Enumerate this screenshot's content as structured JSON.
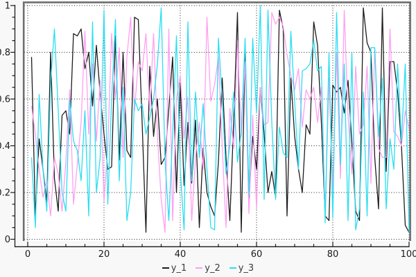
{
  "colors": {
    "background": "#f8f8f8",
    "plot_background": "#ffffff",
    "frame": "#6f6f6f",
    "grid": "#1c1c1c",
    "axis": "#1a1a1a",
    "tick_label": "#1a1a1a",
    "legend_text": "#3a3a3a"
  },
  "legend": {
    "items": [
      {
        "label": "y_1",
        "color": "#1c1c1c"
      },
      {
        "label": "y_2",
        "color": "#ff9ff2"
      },
      {
        "label": "y_3",
        "color": "#2adef2"
      }
    ]
  },
  "chart_data": {
    "type": "line",
    "title": "",
    "xlabel": "",
    "ylabel": "",
    "xlim": [
      0,
      100
    ],
    "ylim": [
      0,
      1
    ],
    "x_ticks": [
      0,
      20,
      40,
      60,
      80,
      100
    ],
    "x_tick_labels": [
      "0",
      "20",
      "40",
      "60",
      "80",
      "100"
    ],
    "y_ticks": [
      0,
      0.2,
      0.4,
      0.6,
      0.8,
      1
    ],
    "y_tick_labels": [
      "0",
      "0.2",
      "0.4",
      "0.6",
      "0.8",
      "1"
    ],
    "x_minor_step": 5,
    "y_minor_step": 0.05,
    "grid": "dotted",
    "legend_position": "bottom-center",
    "x": [
      1,
      2,
      3,
      4,
      5,
      6,
      7,
      8,
      9,
      10,
      11,
      12,
      13,
      14,
      15,
      16,
      17,
      18,
      19,
      20,
      21,
      22,
      23,
      24,
      25,
      26,
      27,
      28,
      29,
      30,
      31,
      32,
      33,
      34,
      35,
      36,
      37,
      38,
      39,
      40,
      41,
      42,
      43,
      44,
      45,
      46,
      47,
      48,
      49,
      50,
      51,
      52,
      53,
      54,
      55,
      56,
      57,
      58,
      59,
      60,
      61,
      62,
      63,
      64,
      65,
      66,
      67,
      68,
      69,
      70,
      71,
      72,
      73,
      74,
      75,
      76,
      77,
      78,
      79,
      80,
      81,
      82,
      83,
      84,
      85,
      86,
      87,
      88,
      89,
      90,
      91,
      92,
      93,
      94,
      95,
      96,
      97,
      98,
      99,
      100
    ],
    "series": [
      {
        "name": "y_1",
        "color": "#1c1c1c",
        "values": [
          0.78,
          0.1,
          0.43,
          0.3,
          0.16,
          0.8,
          0.26,
          0.12,
          0.53,
          0.55,
          0.45,
          0.88,
          0.87,
          0.9,
          0.73,
          0.8,
          0.57,
          0.83,
          0.62,
          0.45,
          0.3,
          0.31,
          0.87,
          0.34,
          0.8,
          0.38,
          0.35,
          0.95,
          0.94,
          0.5,
          0.03,
          0.74,
          0.44,
          0.6,
          0.32,
          0.35,
          0.56,
          0.78,
          0.2,
          0.67,
          0.23,
          0.5,
          0.24,
          0.51,
          0.05,
          0.39,
          0.2,
          0.14,
          0.1,
          0.33,
          0.69,
          0.35,
          0.08,
          0.5,
          0.97,
          0.03,
          0.81,
          0.17,
          0.44,
          0.3,
          0.65,
          0.45,
          0.2,
          0.29,
          0.18,
          0.98,
          0.9,
          0.1,
          0.69,
          0.44,
          0.3,
          0.2,
          0.49,
          0.45,
          0.93,
          0.83,
          0.5,
          0.1,
          0.08,
          0.66,
          0.63,
          0.65,
          0.54,
          0.68,
          0.41,
          0.12,
          0.08,
          0.99,
          0.84,
          0.8,
          0.35,
          0.13,
          0.99,
          0.29,
          0.76,
          0.76,
          0.63,
          0.4,
          0.06,
          0.03
        ]
      },
      {
        "name": "y_2",
        "color": "#ff9ff2",
        "values": [
          0.57,
          0.45,
          0.3,
          0.18,
          0.25,
          0.1,
          0.35,
          0.28,
          0.12,
          0.33,
          0.64,
          0.15,
          0.32,
          0.5,
          0.89,
          0.45,
          0.75,
          0.42,
          0.68,
          0.16,
          0.4,
          0.88,
          0.6,
          0.82,
          0.35,
          0.78,
          0.95,
          0.55,
          0.76,
          0.72,
          0.88,
          0.55,
          0.88,
          0.45,
          0.17,
          0.03,
          0.9,
          0.08,
          0.6,
          0.7,
          0.43,
          0.61,
          0.08,
          0.35,
          0.5,
          0.3,
          0.95,
          0.59,
          0.66,
          0.78,
          0.4,
          0.05,
          0.56,
          0.39,
          0.85,
          0.44,
          0.76,
          0.11,
          0.53,
          0.13,
          0.65,
          0.49,
          0.5,
          0.97,
          0.92,
          0.95,
          0.91,
          0.79,
          0.7,
          0.64,
          0.73,
          0.48,
          0.64,
          0.6,
          0.65,
          0.5,
          0.65,
          0.1,
          0.69,
          0.2,
          0.8,
          0.26,
          0.98,
          0.53,
          0.28,
          0.74,
          0.45,
          0.49,
          0.74,
          0.24,
          0.82,
          0.39,
          0.35,
          0.35,
          0.9,
          0.46,
          0.44,
          0.4,
          0.55,
          0.47
        ]
      },
      {
        "name": "y_3",
        "color": "#2adef2",
        "values": [
          0.35,
          0.05,
          0.62,
          0.3,
          0.12,
          0.67,
          0.9,
          0.55,
          0.2,
          0.12,
          0.6,
          0.42,
          0.38,
          0.25,
          0.55,
          0.1,
          0.93,
          0.2,
          0.35,
          0.98,
          0.15,
          0.6,
          0.94,
          0.25,
          0.65,
          0.08,
          0.2,
          0.6,
          0.55,
          0.58,
          0.45,
          0.52,
          0.6,
          0.75,
          0.99,
          0.34,
          0.08,
          0.45,
          0.87,
          0.3,
          0.04,
          0.93,
          0.25,
          0.63,
          0.35,
          0.58,
          0.3,
          0.05,
          0.04,
          0.86,
          0.6,
          0.28,
          0.4,
          0.63,
          0.33,
          0.46,
          0.86,
          0.19,
          0.86,
          0.54,
          1.0,
          0.17,
          0.98,
          0.5,
          0.17,
          0.48,
          0.37,
          0.35,
          0.89,
          0.59,
          0.3,
          0.72,
          0.73,
          0.75,
          0.85,
          0.72,
          0.74,
          0.07,
          0.8,
          0.09,
          0.97,
          0.32,
          0.75,
          0.08,
          0.8,
          0.04,
          0.13,
          0.63,
          0.1,
          0.82,
          0.82,
          0.44,
          0.69,
          0.13,
          0.43,
          0.3,
          0.75,
          0.42,
          0.75,
          0.03
        ]
      }
    ]
  }
}
